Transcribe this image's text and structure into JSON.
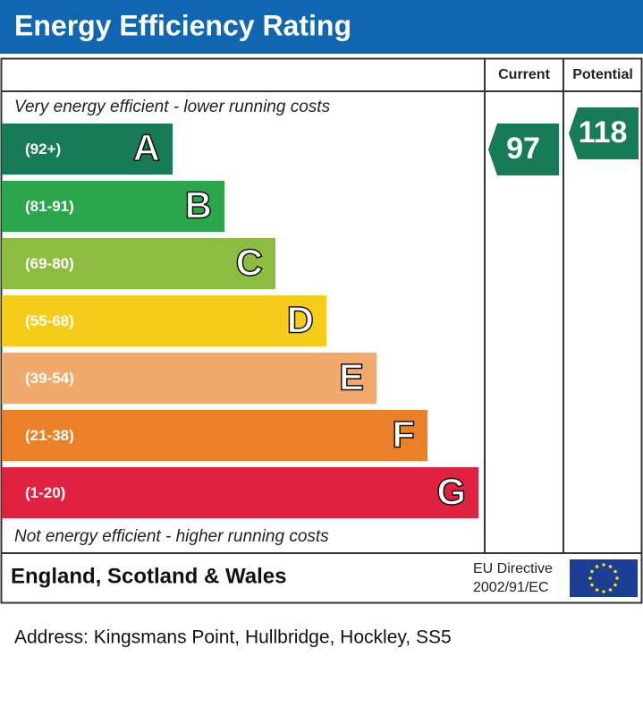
{
  "header": {
    "title": "Energy Efficiency Rating"
  },
  "columns": {
    "current": "Current",
    "potential": "Potential"
  },
  "top_note": "Very energy efficient - lower running costs",
  "bottom_note": "Not energy efficient - higher running costs",
  "bands": [
    {
      "range": "(92+)",
      "letter": "A",
      "color": "#177b57"
    },
    {
      "range": "(81-91)",
      "letter": "B",
      "color": "#2ba64d"
    },
    {
      "range": "(69-80)",
      "letter": "C",
      "color": "#8cbd41"
    },
    {
      "range": "(55-68)",
      "letter": "D",
      "color": "#f6cc1a"
    },
    {
      "range": "(39-54)",
      "letter": "E",
      "color": "#f1aa6d"
    },
    {
      "range": "(21-38)",
      "letter": "F",
      "color": "#ec8028"
    },
    {
      "range": "(1-20)",
      "letter": "G",
      "color": "#e0213f"
    }
  ],
  "ratings": {
    "current": "97",
    "potential": "118",
    "color": "#177b57"
  },
  "footer": {
    "region": "England, Scotland & Wales",
    "directive": "EU Directive",
    "code": "2002/91/EC"
  },
  "address": "Address: Kingsmans Point, Hullbridge, Hockley, SS5"
}
